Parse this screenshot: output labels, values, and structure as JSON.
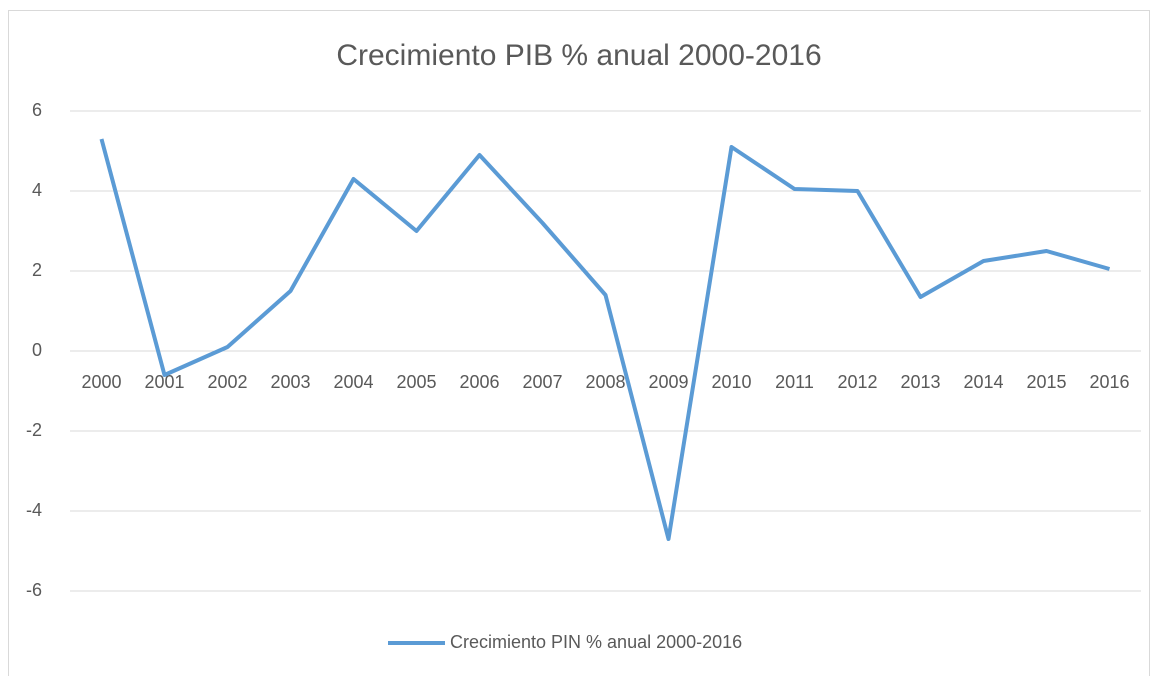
{
  "chart_data": {
    "type": "line",
    "title": "Crecimiento PIB % anual 2000-2016",
    "categories": [
      "2000",
      "2001",
      "2002",
      "2003",
      "2004",
      "2005",
      "2006",
      "2007",
      "2008",
      "2009",
      "2010",
      "2011",
      "2012",
      "2013",
      "2014",
      "2015",
      "2016"
    ],
    "series": [
      {
        "name": "Crecimiento PIN % anual 2000-2016",
        "color": "#5b9bd5",
        "values": [
          5.3,
          -0.6,
          0.1,
          1.5,
          4.3,
          3.0,
          4.9,
          3.2,
          1.4,
          -4.7,
          5.1,
          4.05,
          4.0,
          1.35,
          2.25,
          2.5,
          2.05
        ]
      }
    ],
    "ylim": [
      -6,
      6
    ],
    "yticks": [
      -6,
      -4,
      -2,
      0,
      2,
      4,
      6
    ],
    "grid": true,
    "legend": "bottom"
  }
}
